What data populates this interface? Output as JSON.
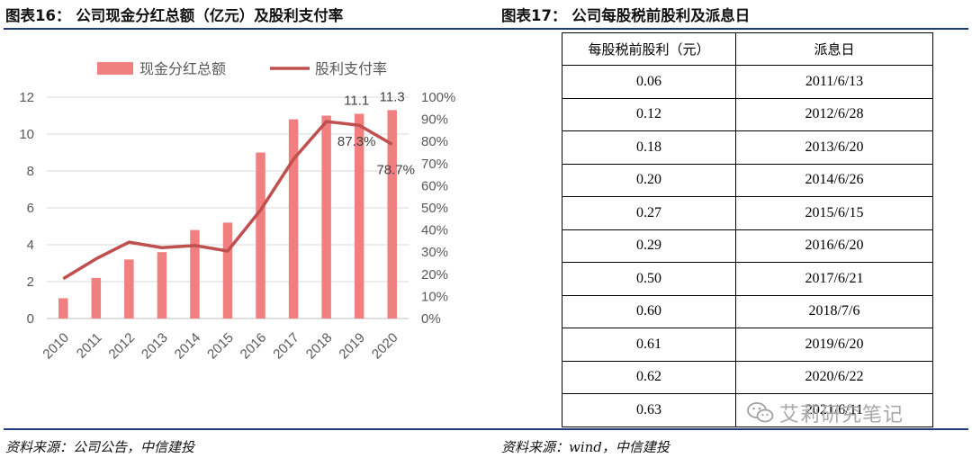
{
  "left_figure": {
    "title": "图表16： 公司现金分红总额（亿元）及股利支付率",
    "source": "资料来源：公司公告，中信建投"
  },
  "right_figure": {
    "title": "图表17： 公司每股税前股利及派息日",
    "source": "资料来源：wind，中信建投"
  },
  "chart_data": {
    "type": "bar+line",
    "title": "公司现金分红总额（亿元）及股利支付率",
    "categories": [
      "2010",
      "2011",
      "2012",
      "2013",
      "2014",
      "2015",
      "2016",
      "2017",
      "2018",
      "2019",
      "2020"
    ],
    "series": [
      {
        "name": "现金分红总额",
        "type": "bar",
        "axis": "left",
        "color": "#f08080",
        "values": [
          1.1,
          2.2,
          3.2,
          3.6,
          4.8,
          5.2,
          9.0,
          10.8,
          11.0,
          11.1,
          11.3
        ]
      },
      {
        "name": "股利支付率",
        "type": "line",
        "axis": "right",
        "color": "#c0504d",
        "values": [
          18,
          27,
          34.5,
          32,
          33,
          30.5,
          49,
          72,
          89,
          87.3,
          78.7
        ]
      }
    ],
    "y_left": {
      "min": 0,
      "max": 12,
      "ticks": [
        0,
        2,
        4,
        6,
        8,
        10,
        12
      ]
    },
    "y_right": {
      "min": 0,
      "max": 100,
      "ticks": [
        "0%",
        "10%",
        "20%",
        "30%",
        "40%",
        "50%",
        "60%",
        "70%",
        "80%",
        "90%",
        "100%"
      ]
    },
    "data_labels": [
      {
        "series": 0,
        "index": 9,
        "text": "11.1"
      },
      {
        "series": 0,
        "index": 10,
        "text": "11.3"
      },
      {
        "series": 1,
        "index": 9,
        "text": "87.3%"
      },
      {
        "series": 1,
        "index": 10,
        "text": "78.7%"
      }
    ],
    "legend": [
      "现金分红总额",
      "股利支付率"
    ],
    "legend_position": "top",
    "grid": true
  },
  "table": {
    "headers": [
      "每股税前股利（元）",
      "派息日"
    ],
    "rows": [
      [
        "0.06",
        "2011/6/13"
      ],
      [
        "0.12",
        "2012/6/28"
      ],
      [
        "0.18",
        "2013/6/20"
      ],
      [
        "0.20",
        "2014/6/26"
      ],
      [
        "0.27",
        "2015/6/15"
      ],
      [
        "0.29",
        "2016/6/20"
      ],
      [
        "0.50",
        "2017/6/21"
      ],
      [
        "0.60",
        "2018/7/6"
      ],
      [
        "0.61",
        "2019/6/20"
      ],
      [
        "0.62",
        "2020/6/22"
      ],
      [
        "0.63",
        "2021/6/11"
      ]
    ]
  },
  "watermark": {
    "text": "艾莉研究笔记",
    "icon": "wechat-icon"
  }
}
